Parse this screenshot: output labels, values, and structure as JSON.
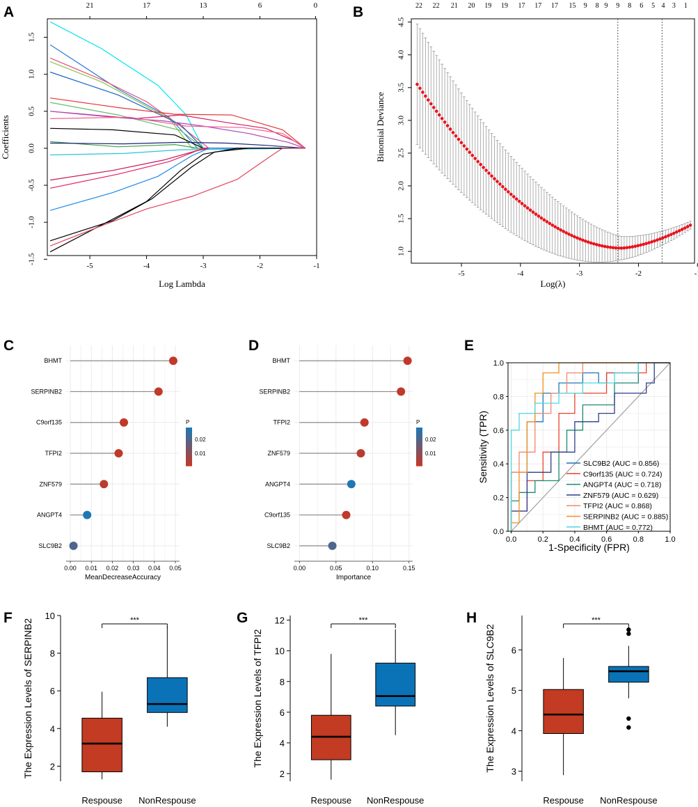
{
  "panel_letters": {
    "a": "A",
    "b": "B",
    "c": "C",
    "d": "D",
    "e": "E",
    "f": "F",
    "g": "G",
    "h": "H"
  },
  "colors": {
    "red": "#d1333d",
    "boxRed": "#c23b22",
    "boxBlue": "#0a73b8",
    "cvRed": "#e8141e",
    "cvErr": "#9a9a9a",
    "lolliHigh": "#1f77b4",
    "lolliLow": "#c0392b"
  },
  "chart_data": [
    {
      "id": "A",
      "type": "line",
      "title": "",
      "xlabel": "Log Lambda",
      "ylabel": "Coefficients",
      "xlim": [
        -5.75,
        -1.0
      ],
      "ylim": [
        -1.45,
        1.75
      ],
      "xticks": [
        "-5",
        "-4",
        "-3",
        "-2",
        "-1"
      ],
      "xtick_values": [
        -5,
        -4,
        -3,
        -2,
        -1
      ],
      "yticks": [
        "-1.5",
        "-1.0",
        "-0.5",
        "0.0",
        "0.5",
        "1.0",
        "1.5"
      ],
      "ytick_values": [
        -1.5,
        -1.0,
        -0.5,
        0.0,
        0.5,
        1.0,
        1.5
      ],
      "top_labels": [
        "21",
        "17",
        "13",
        "6",
        "0"
      ],
      "top_label_x": [
        -5,
        -4,
        -3,
        -2,
        -1.02
      ],
      "series": [
        {
          "name": "s1",
          "color": "#00e5ee",
          "x": [
            -5.7,
            -4.8,
            -3.8,
            -3.3,
            -3.0,
            -2.5,
            -1.6,
            -1.2
          ],
          "y": [
            1.71,
            1.35,
            0.85,
            0.45,
            0.0,
            0.0,
            0.0,
            0.0
          ]
        },
        {
          "name": "s2",
          "color": "#2b7bd6",
          "x": [
            -5.7,
            -4.5,
            -3.6,
            -3.1,
            -2.9,
            -1.2
          ],
          "y": [
            1.4,
            0.8,
            0.42,
            0.0,
            0.0,
            0.0
          ]
        },
        {
          "name": "s3",
          "color": "#e8507a",
          "x": [
            -5.7,
            -4.8,
            -4.0,
            -3.4,
            -2.9,
            -1.2
          ],
          "y": [
            1.22,
            0.93,
            0.63,
            0.3,
            0.0,
            0.0
          ]
        },
        {
          "name": "s4",
          "color": "#8bc34a",
          "x": [
            -5.7,
            -4.8,
            -3.6,
            -3.2,
            -1.2
          ],
          "y": [
            1.17,
            0.9,
            0.4,
            0.0,
            0.0
          ]
        },
        {
          "name": "s5",
          "color": "#1565c0",
          "x": [
            -5.7,
            -4.5,
            -3.4,
            -3.0,
            -1.2
          ],
          "y": [
            1.03,
            0.72,
            0.32,
            0.0,
            0.0
          ]
        },
        {
          "name": "s6",
          "color": "#e53935",
          "x": [
            -5.7,
            -4.5,
            -3.5,
            -2.5,
            -1.6,
            -1.2
          ],
          "y": [
            0.68,
            0.55,
            0.46,
            0.45,
            0.25,
            0.0
          ]
        },
        {
          "name": "s7",
          "color": "#66bb6a",
          "x": [
            -5.7,
            -4.5,
            -3.4,
            -3.0,
            -1.2
          ],
          "y": [
            0.62,
            0.45,
            0.24,
            0.0,
            0.0
          ]
        },
        {
          "name": "s8",
          "color": "#d81b60",
          "x": [
            -5.7,
            -4.2,
            -3.4,
            -2.6,
            -1.9,
            -1.4,
            -1.2
          ],
          "y": [
            0.5,
            0.4,
            0.45,
            0.35,
            0.27,
            0.1,
            0.0
          ]
        },
        {
          "name": "s9",
          "color": "#ab47bc",
          "x": [
            -5.7,
            -4.6,
            -3.7,
            -3.0,
            -2.2,
            -1.5,
            -1.2
          ],
          "y": [
            0.5,
            0.42,
            0.37,
            0.3,
            0.2,
            0.08,
            0.0
          ]
        },
        {
          "name": "s10",
          "color": "#f06292",
          "x": [
            -5.7,
            -4.3,
            -3.3,
            -2.3,
            -1.6,
            -1.2
          ],
          "y": [
            0.4,
            0.42,
            0.3,
            0.28,
            0.2,
            0.0
          ]
        },
        {
          "name": "s11",
          "color": "#000000",
          "x": [
            -5.7,
            -4.6,
            -3.5,
            -3.0,
            -1.2
          ],
          "y": [
            0.27,
            0.25,
            0.18,
            0.0,
            0.0
          ]
        },
        {
          "name": "s12",
          "color": "#43a047",
          "x": [
            -5.7,
            -4.5,
            -3.5,
            -3.1,
            -1.2
          ],
          "y": [
            0.09,
            0.02,
            0.05,
            0.0,
            0.0
          ]
        },
        {
          "name": "s13",
          "color": "#1a237e",
          "x": [
            -5.7,
            -4.4,
            -3.4,
            -2.6,
            -1.9,
            -1.2
          ],
          "y": [
            0.07,
            0.06,
            0.08,
            0.07,
            0.04,
            0.0
          ]
        },
        {
          "name": "s14",
          "color": "#26c6da",
          "x": [
            -5.7,
            -4.4,
            -3.4,
            -1.2
          ],
          "y": [
            -0.09,
            -0.07,
            -0.02,
            0.0
          ]
        },
        {
          "name": "s15",
          "color": "#c2185b",
          "x": [
            -5.7,
            -4.6,
            -3.7,
            -3.1,
            -2.9,
            -1.2
          ],
          "y": [
            -0.43,
            -0.3,
            -0.16,
            -0.03,
            0.0,
            0.0
          ]
        },
        {
          "name": "s16",
          "color": "#e91e63",
          "x": [
            -5.7,
            -4.5,
            -3.6,
            -3.0,
            -1.2
          ],
          "y": [
            -0.54,
            -0.35,
            -0.18,
            0.0,
            0.0
          ]
        },
        {
          "name": "s17",
          "color": "#1e88e5",
          "x": [
            -5.7,
            -4.6,
            -3.8,
            -3.2,
            -2.9,
            -1.2
          ],
          "y": [
            -0.84,
            -0.6,
            -0.38,
            -0.1,
            0.0,
            0.0
          ]
        },
        {
          "name": "s18",
          "color": "#000000",
          "x": [
            -5.7,
            -4.6,
            -3.9,
            -3.2,
            -2.8,
            -2.2,
            -1.2
          ],
          "y": [
            -1.25,
            -0.98,
            -0.68,
            -0.25,
            -0.05,
            0.0,
            0.0
          ]
        },
        {
          "name": "s19",
          "color": "#000000",
          "x": [
            -5.7,
            -4.7,
            -4.0,
            -3.4,
            -3.0,
            -2.4,
            -2.2,
            -1.2
          ],
          "y": [
            -1.4,
            -1.0,
            -0.72,
            -0.3,
            -0.08,
            0.0,
            0.0,
            0.0
          ]
        },
        {
          "name": "s20",
          "color": "#e0455a",
          "x": [
            -5.7,
            -4.8,
            -4.0,
            -3.2,
            -2.4,
            -1.8,
            -1.6,
            -1.2
          ],
          "y": [
            -1.32,
            -1.05,
            -0.82,
            -0.65,
            -0.42,
            -0.1,
            0.0,
            0.0
          ]
        }
      ]
    },
    {
      "id": "B",
      "type": "scatter",
      "title": "",
      "xlabel": "Log(λ)",
      "ylabel": "Binomial Deviance",
      "xlim": [
        -5.85,
        -1.05
      ],
      "ylim": [
        0.82,
        4.55
      ],
      "xticks": [
        "-5",
        "-4",
        "-3",
        "-2",
        "-1"
      ],
      "xtick_values": [
        -5,
        -4,
        -3,
        -2,
        -1
      ],
      "yticks": [
        "1.0",
        "1.5",
        "2.0",
        "2.5",
        "3.0",
        "3.5",
        "4.0",
        "4.5"
      ],
      "ytick_values": [
        1.0,
        1.5,
        2.0,
        2.5,
        3.0,
        3.5,
        4.0,
        4.5
      ],
      "top_labels": [
        "22",
        "22",
        "21",
        "20",
        "19",
        "19",
        "17",
        "17",
        "17",
        "15",
        "9",
        "8",
        "9",
        "9",
        "8",
        "6",
        "5",
        "4",
        "3",
        "1"
      ],
      "top_label_x": [
        -5.72,
        -5.43,
        -5.12,
        -4.83,
        -4.55,
        -4.27,
        -3.98,
        -3.7,
        -3.42,
        -3.12,
        -2.9,
        -2.7,
        -2.55,
        -2.35,
        -2.15,
        -1.95,
        -1.75,
        -1.58,
        -1.4,
        -1.2
      ],
      "vlines": [
        -2.35,
        -1.6
      ],
      "curve": {
        "x_start": -5.75,
        "x_end": -1.12,
        "n": 100,
        "y_start": 3.55,
        "y_min": 1.05,
        "x_min": -2.3,
        "y_end": 1.4,
        "err_start": 0.92,
        "err_min": 0.18,
        "err_end": 0.06
      }
    },
    {
      "id": "C",
      "type": "scatter",
      "title": "",
      "xlabel": "MeanDecreaseAccuracy",
      "ylabel": "",
      "xlim": [
        -0.002,
        0.052
      ],
      "xticks": [
        "0.00",
        "0.01",
        "0.02",
        "0.03",
        "0.04",
        "0.05"
      ],
      "xtick_values": [
        0.0,
        0.01,
        0.02,
        0.03,
        0.04,
        0.05
      ],
      "categories": [
        "BHMT",
        "SERPINB2",
        "C9orf135",
        "TFPI2",
        "ZNF579",
        "ANGPT4",
        "SLC9B2"
      ],
      "values": [
        0.049,
        0.042,
        0.0255,
        0.023,
        0.016,
        0.008,
        0.0015
      ],
      "pvalues": [
        0.001,
        0.001,
        0.001,
        0.001,
        0.002,
        0.025,
        0.018
      ],
      "legend": {
        "title": "P",
        "labels": [
          "0.02",
          "0.01"
        ]
      }
    },
    {
      "id": "D",
      "type": "scatter",
      "title": "",
      "xlabel": "Importance",
      "ylabel": "",
      "xlim": [
        -0.007,
        0.155
      ],
      "xticks": [
        "0.00",
        "0.05",
        "0.10",
        "0.15"
      ],
      "xtick_values": [
        0.0,
        0.05,
        0.1,
        0.15
      ],
      "categories": [
        "BHMT",
        "SERPINB2",
        "TFPI2",
        "ZNF579",
        "ANGPT4",
        "C9orf135",
        "SLC9B2"
      ],
      "values": [
        0.148,
        0.139,
        0.089,
        0.084,
        0.071,
        0.064,
        0.045
      ],
      "pvalues": [
        0.001,
        0.001,
        0.001,
        0.002,
        0.025,
        0.001,
        0.018
      ],
      "legend": {
        "title": "P",
        "labels": [
          "0.02",
          "0.01"
        ]
      }
    },
    {
      "id": "E",
      "type": "line",
      "title": "",
      "xlabel": "1-Specificity (FPR)",
      "ylabel": "Sensitivity (TPR)",
      "xlim": [
        -0.02,
        1.0
      ],
      "ylim": [
        0.0,
        1.0
      ],
      "xticks": [
        "0.0",
        "0.2",
        "0.4",
        "0.6",
        "0.8",
        "1.0"
      ],
      "xtick_values": [
        0.0,
        0.2,
        0.4,
        0.6,
        0.8,
        1.0
      ],
      "yticks": [
        "0.0",
        "0.2",
        "0.4",
        "0.6",
        "0.8",
        "1.0"
      ],
      "ytick_values": [
        0.0,
        0.2,
        0.4,
        0.6,
        0.8,
        1.0
      ],
      "series": [
        {
          "name": "SLC9B2 (AUC = 0.856)",
          "color": "#1f77b4",
          "x": [
            0,
            0,
            0.1,
            0.1,
            0.2,
            0.2,
            0.3,
            0.3,
            0.45,
            0.45,
            0.55,
            0.55,
            0.6,
            0.6,
            0.8,
            0.8,
            1.0
          ],
          "y": [
            0,
            0.35,
            0.35,
            0.65,
            0.65,
            0.82,
            0.82,
            0.88,
            0.88,
            0.94,
            0.94,
            0.88,
            0.88,
            0.94,
            0.94,
            1.0,
            1.0
          ]
        },
        {
          "name": "C9orf135 (AUC = 0.724)",
          "color": "#e8432e",
          "x": [
            0,
            0,
            0.1,
            0.1,
            0.2,
            0.2,
            0.3,
            0.3,
            0.4,
            0.4,
            0.6,
            0.6,
            0.85,
            0.85,
            1.0
          ],
          "y": [
            0,
            0.12,
            0.12,
            0.3,
            0.3,
            0.47,
            0.47,
            0.7,
            0.7,
            0.82,
            0.82,
            0.94,
            0.94,
            1.0,
            1.0
          ]
        },
        {
          "name": "ANGPT4 (AUC = 0.718)",
          "color": "#1a8a70",
          "x": [
            0,
            0,
            0.05,
            0.05,
            0.15,
            0.15,
            0.3,
            0.3,
            0.35,
            0.35,
            0.45,
            0.45,
            0.65,
            0.65,
            0.8,
            0.8,
            1.0
          ],
          "y": [
            0,
            0.18,
            0.18,
            0.23,
            0.23,
            0.3,
            0.3,
            0.47,
            0.47,
            0.6,
            0.6,
            0.75,
            0.75,
            0.88,
            0.88,
            1.0,
            1.0
          ]
        },
        {
          "name": "ZNF579 (AUC = 0.629)",
          "color": "#2c3e8c",
          "x": [
            0,
            0,
            0.1,
            0.1,
            0.25,
            0.25,
            0.4,
            0.4,
            0.55,
            0.55,
            0.65,
            0.65,
            0.85,
            0.85,
            0.9,
            0.9,
            1.0
          ],
          "y": [
            0,
            0.12,
            0.12,
            0.35,
            0.35,
            0.47,
            0.47,
            0.65,
            0.65,
            0.7,
            0.7,
            0.82,
            0.82,
            0.88,
            0.88,
            1.0,
            1.0
          ]
        },
        {
          "name": "TFPI2 (AUC = 0.868)",
          "color": "#f4866a",
          "x": [
            0,
            0,
            0.05,
            0.05,
            0.15,
            0.15,
            0.25,
            0.25,
            0.35,
            0.35,
            0.45,
            0.45,
            0.55,
            0.55,
            1.0
          ],
          "y": [
            0,
            0.35,
            0.35,
            0.47,
            0.47,
            0.7,
            0.7,
            0.82,
            0.82,
            0.94,
            0.94,
            1.0,
            1.0,
            1.0,
            1.0
          ]
        },
        {
          "name": "SERPINB2 (AUC = 0.885)",
          "color": "#f0901e",
          "x": [
            0,
            0,
            0.05,
            0.05,
            0.1,
            0.1,
            0.15,
            0.15,
            0.2,
            0.2,
            0.3,
            0.3,
            1.0
          ],
          "y": [
            0,
            0.05,
            0.05,
            0.35,
            0.35,
            0.65,
            0.65,
            0.82,
            0.82,
            0.94,
            0.94,
            1.0,
            1.0
          ]
        },
        {
          "name": "BHMT (AUC = 0.772)",
          "color": "#4dd6e0",
          "x": [
            0,
            0,
            0.05,
            0.05,
            0.15,
            0.15,
            0.3,
            0.3,
            0.45,
            0.45,
            0.65,
            0.65,
            0.8,
            0.8,
            1.0
          ],
          "y": [
            0,
            0.6,
            0.6,
            0.7,
            0.7,
            0.76,
            0.76,
            0.82,
            0.82,
            0.88,
            0.88,
            0.94,
            0.94,
            1.0,
            1.0
          ]
        }
      ]
    },
    {
      "id": "F",
      "type": "box",
      "title": "",
      "ylabel": "The Expression Levels of SERPINB2",
      "categories": [
        "Respouse",
        "NonRespouse"
      ],
      "ylim": [
        1.2,
        10.0
      ],
      "yticks": [
        "2",
        "4",
        "6",
        "8",
        "10"
      ],
      "ytick_values": [
        2,
        4,
        6,
        8,
        10
      ],
      "boxes": [
        {
          "min": 1.3,
          "q1": 1.7,
          "median": 3.2,
          "q3": 4.55,
          "max": 5.95,
          "outliers": []
        },
        {
          "min": 4.1,
          "q1": 4.85,
          "median": 5.3,
          "q3": 6.7,
          "max": 9.4,
          "outliers": []
        }
      ],
      "significance": "***"
    },
    {
      "id": "G",
      "type": "box",
      "title": "",
      "ylabel": "The Expression Levels of TFPI2",
      "categories": [
        "Respouse",
        "NonRespouse"
      ],
      "ylim": [
        1.5,
        12.3
      ],
      "yticks": [
        "2",
        "4",
        "6",
        "8",
        "10",
        "12"
      ],
      "ytick_values": [
        2,
        4,
        6,
        8,
        10,
        12
      ],
      "boxes": [
        {
          "min": 1.6,
          "q1": 2.9,
          "median": 4.4,
          "q3": 5.8,
          "max": 9.8,
          "outliers": []
        },
        {
          "min": 4.5,
          "q1": 6.4,
          "median": 7.05,
          "q3": 9.2,
          "max": 11.4,
          "outliers": []
        }
      ],
      "significance": "***"
    },
    {
      "id": "H",
      "type": "box",
      "title": "",
      "ylabel": "The Expression Levels of SLC9B2",
      "categories": [
        "Respouse",
        "NonRespouse"
      ],
      "ylim": [
        2.75,
        6.85
      ],
      "yticks": [
        "3",
        "4",
        "5",
        "6"
      ],
      "ytick_values": [
        3,
        4,
        5,
        6
      ],
      "boxes": [
        {
          "min": 2.9,
          "q1": 3.93,
          "median": 4.4,
          "q3": 5.02,
          "max": 5.8,
          "outliers": []
        },
        {
          "min": 4.8,
          "q1": 5.2,
          "median": 5.47,
          "q3": 5.59,
          "max": 6.1,
          "outliers": [
            6.5,
            6.4,
            4.3,
            4.08
          ]
        }
      ],
      "significance": "***"
    }
  ]
}
